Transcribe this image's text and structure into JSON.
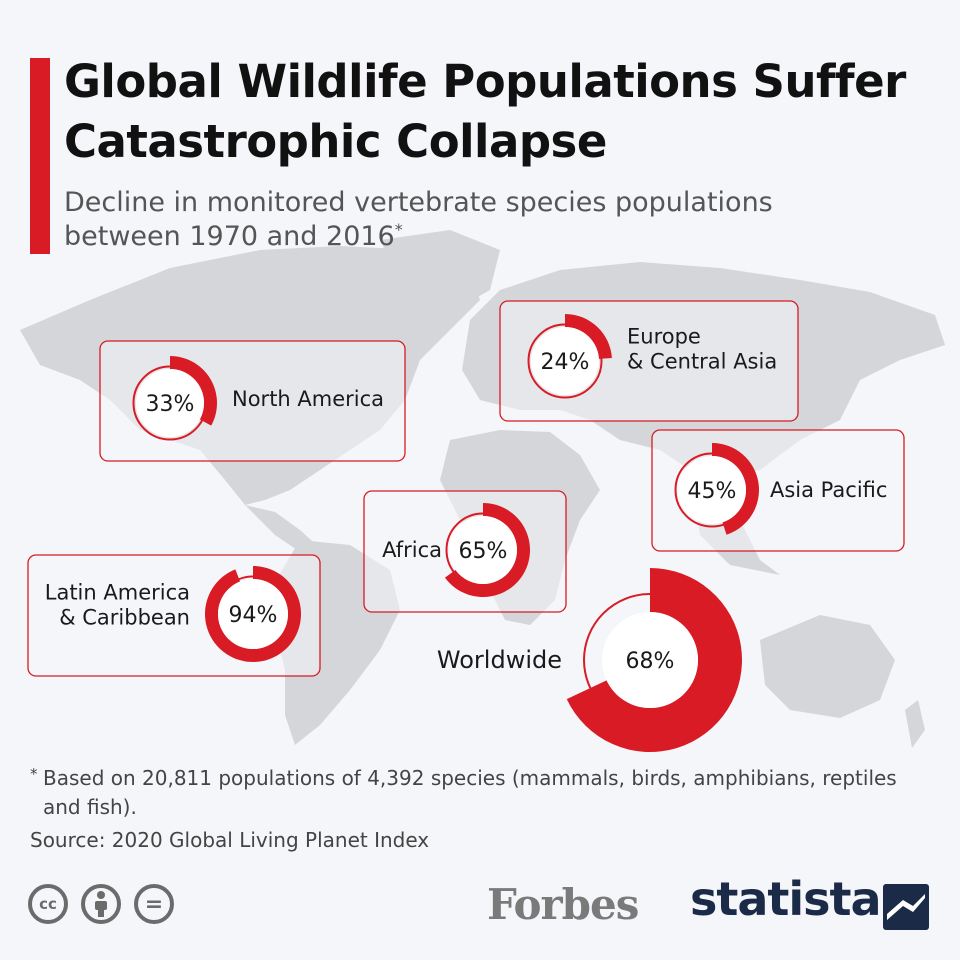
{
  "header": {
    "title": "Global Wildlife Populations Suffer Catastrophic Collapse",
    "subtitle": "Decline in monitored vertebrate species populations between 1970 and 2016",
    "subtitle_mark": "*"
  },
  "chart_data": {
    "type": "pie",
    "title": "Global Wildlife Populations Suffer Catastrophic Collapse",
    "subtitle": "Decline in monitored vertebrate species populations between 1970 and 2016",
    "unit": "%",
    "categories": [
      "North America",
      "Europe & Central Asia",
      "Asia Pacific",
      "Africa",
      "Latin America & Caribbean",
      "Worldwide"
    ],
    "values": [
      33,
      24,
      45,
      65,
      94,
      68
    ],
    "labels": [
      "33%",
      "24%",
      "45%",
      "65%",
      "94%",
      "68%"
    ],
    "colors": {
      "accent": "#d81b24",
      "box_border": "#d81b24",
      "ring_background": "#ffffff",
      "map": "#d2d4d7"
    }
  },
  "footer": {
    "footnote_mark": "*",
    "footnote": "Based on 20,811 populations of 4,392 species (mammals, birds, amphibians, reptiles and fish).",
    "source": "Source: 2020 Global Living Planet Index",
    "license_icons": [
      "creative-commons-icon",
      "attribution-icon",
      "no-derivatives-icon"
    ],
    "cc_icon_text": "cc",
    "nd_icon_text": "=",
    "forbes_logo": "Forbes",
    "statista_logo": "statista"
  }
}
